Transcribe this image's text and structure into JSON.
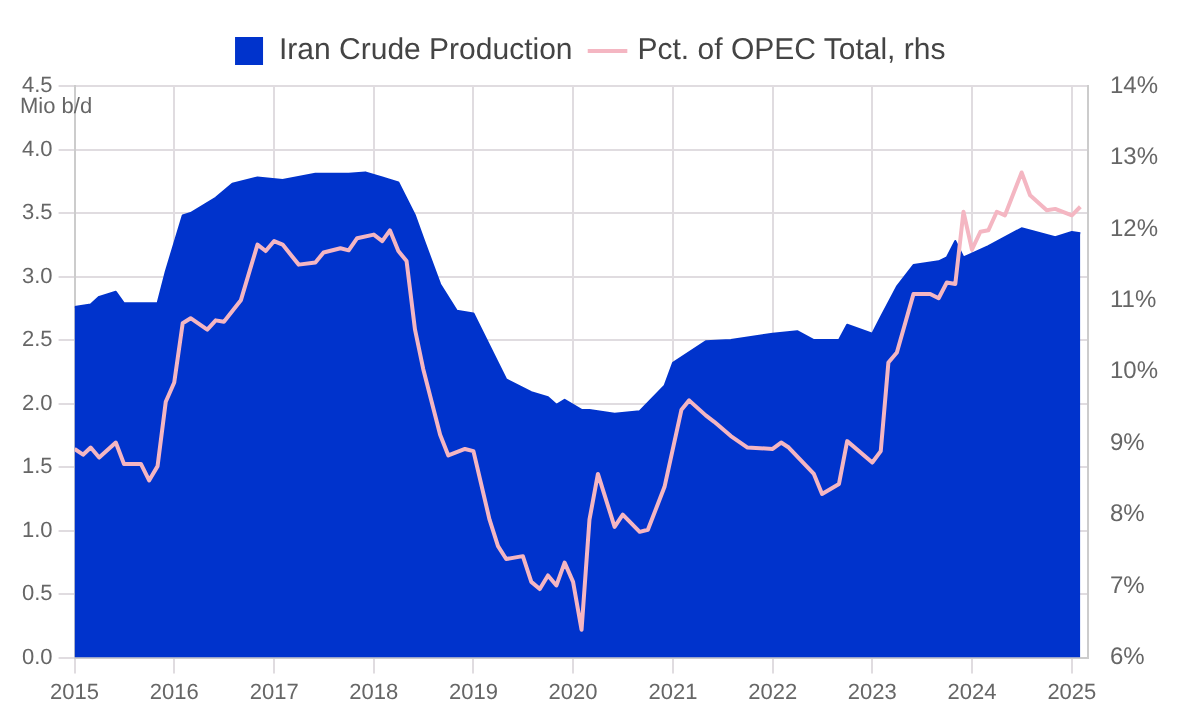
{
  "chart_data": {
    "type": "area",
    "ylabel": "Mio b/d",
    "legend": "top",
    "grid": true,
    "xlim": [
      "2015-01",
      "2025-03"
    ],
    "xticks": [
      "2015",
      "2016",
      "2017",
      "2018",
      "2019",
      "2020",
      "2021",
      "2022",
      "2023",
      "2024",
      "2025"
    ],
    "ylim": [
      0,
      4.5
    ],
    "yticks": [
      {
        "value": 0,
        "label": "0.0"
      },
      {
        "value": 0.5,
        "label": "0.5"
      },
      {
        "value": 1,
        "label": "1.0"
      },
      {
        "value": 1.5,
        "label": "1.5"
      },
      {
        "value": 2,
        "label": "2.0"
      },
      {
        "value": 2.5,
        "label": "2.5"
      },
      {
        "value": 3,
        "label": "3.0"
      },
      {
        "value": 3.5,
        "label": "3.5"
      },
      {
        "value": 4,
        "label": "4.0"
      },
      {
        "value": 4.5,
        "label": "4.5"
      }
    ],
    "y2lim": [
      6,
      14
    ],
    "y2ticks": [
      {
        "value": 6,
        "label": "6%"
      },
      {
        "value": 7,
        "label": "7%"
      },
      {
        "value": 8,
        "label": "8%"
      },
      {
        "value": 9,
        "label": "9%"
      },
      {
        "value": 10,
        "label": "10%"
      },
      {
        "value": 11,
        "label": "11%"
      },
      {
        "value": 12,
        "label": "12%"
      },
      {
        "value": 13,
        "label": "13%"
      },
      {
        "value": 14,
        "label": "14%"
      }
    ],
    "series": [
      {
        "name": "Iran Crude Production",
        "type": "area",
        "color": "#0033cc",
        "x": [
          "2015-01",
          "2015-03",
          "2015-04",
          "2015-06",
          "2015-07",
          "2015-11",
          "2015-12",
          "2016-02",
          "2016-03",
          "2016-06",
          "2016-08",
          "2016-11",
          "2017-02",
          "2017-06",
          "2017-10",
          "2017-12",
          "2018-02",
          "2018-04",
          "2018-06",
          "2018-07",
          "2018-09",
          "2018-11",
          "2019-01",
          "2019-04",
          "2019-05",
          "2019-08",
          "2019-10",
          "2019-11",
          "2019-12",
          "2020-02",
          "2020-03",
          "2020-06",
          "2020-09",
          "2020-12",
          "2021-01",
          "2021-05",
          "2021-08",
          "2022-01",
          "2022-04",
          "2022-06",
          "2022-09",
          "2022-10",
          "2023-01",
          "2023-02",
          "2023-04",
          "2023-06",
          "2023-09",
          "2023-10",
          "2023-11",
          "2023-12",
          "2024-03",
          "2024-07",
          "2024-11",
          "2025-01",
          "2025-02"
        ],
        "values": [
          2.76,
          2.78,
          2.84,
          2.88,
          2.79,
          2.79,
          3.04,
          3.48,
          3.5,
          3.62,
          3.73,
          3.78,
          3.76,
          3.81,
          3.81,
          3.82,
          3.78,
          3.74,
          3.48,
          3.3,
          2.94,
          2.73,
          2.71,
          2.32,
          2.19,
          2.09,
          2.05,
          1.99,
          2.03,
          1.95,
          1.95,
          1.92,
          1.94,
          2.14,
          2.32,
          2.49,
          2.5,
          2.55,
          2.57,
          2.5,
          2.5,
          2.62,
          2.55,
          2.68,
          2.92,
          3.09,
          3.12,
          3.15,
          3.28,
          3.15,
          3.24,
          3.38,
          3.31,
          3.35,
          3.34
        ]
      },
      {
        "name": "Pct. of OPEC Total, rhs",
        "type": "line",
        "axis": "y2",
        "color": "#f4b6c2",
        "x": [
          "2015-01",
          "2015-02",
          "2015-03",
          "2015-04",
          "2015-06",
          "2015-07",
          "2015-09",
          "2015-10",
          "2015-11",
          "2015-12",
          "2016-01",
          "2016-02",
          "2016-03",
          "2016-05",
          "2016-06",
          "2016-07",
          "2016-09",
          "2016-11",
          "2016-12",
          "2017-01",
          "2017-02",
          "2017-04",
          "2017-06",
          "2017-07",
          "2017-09",
          "2017-10",
          "2017-11",
          "2018-01",
          "2018-02",
          "2018-03",
          "2018-04",
          "2018-05",
          "2018-06",
          "2018-07",
          "2018-09",
          "2018-10",
          "2018-12",
          "2019-01",
          "2019-03",
          "2019-04",
          "2019-05",
          "2019-07",
          "2019-08",
          "2019-09",
          "2019-10",
          "2019-11",
          "2019-12",
          "2020-01",
          "2020-02",
          "2020-03",
          "2020-04",
          "2020-06",
          "2020-07",
          "2020-09",
          "2020-10",
          "2020-12",
          "2021-02",
          "2021-03",
          "2021-05",
          "2021-06",
          "2021-08",
          "2021-10",
          "2022-01",
          "2022-02",
          "2022-03",
          "2022-06",
          "2022-07",
          "2022-09",
          "2022-10",
          "2023-01",
          "2023-02",
          "2023-03",
          "2023-04",
          "2023-06",
          "2023-08",
          "2023-09",
          "2023-10",
          "2023-11",
          "2023-12",
          "2024-01",
          "2024-02",
          "2024-03",
          "2024-04",
          "2024-05",
          "2024-07",
          "2024-08",
          "2024-10",
          "2024-11",
          "2025-01",
          "2025-02"
        ],
        "values": [
          8.92,
          8.84,
          8.94,
          8.8,
          9.01,
          8.71,
          8.71,
          8.48,
          8.68,
          9.58,
          9.85,
          10.68,
          10.75,
          10.59,
          10.72,
          10.7,
          11.0,
          11.78,
          11.69,
          11.83,
          11.78,
          11.5,
          11.53,
          11.67,
          11.73,
          11.7,
          11.87,
          11.92,
          11.83,
          11.98,
          11.69,
          11.55,
          10.59,
          10.04,
          9.12,
          8.83,
          8.92,
          8.89,
          7.93,
          7.56,
          7.38,
          7.42,
          7.06,
          6.96,
          7.15,
          7.01,
          7.33,
          7.06,
          6.39,
          7.93,
          8.57,
          7.83,
          8.0,
          7.76,
          7.79,
          8.39,
          9.47,
          9.6,
          9.39,
          9.3,
          9.1,
          8.94,
          8.92,
          9.01,
          8.94,
          8.57,
          8.29,
          8.43,
          9.03,
          8.73,
          8.89,
          10.13,
          10.27,
          11.09,
          11.09,
          11.03,
          11.25,
          11.23,
          12.24,
          11.71,
          11.96,
          11.98,
          12.24,
          12.19,
          12.79,
          12.47,
          12.26,
          12.28,
          12.19,
          12.31
        ]
      }
    ]
  }
}
